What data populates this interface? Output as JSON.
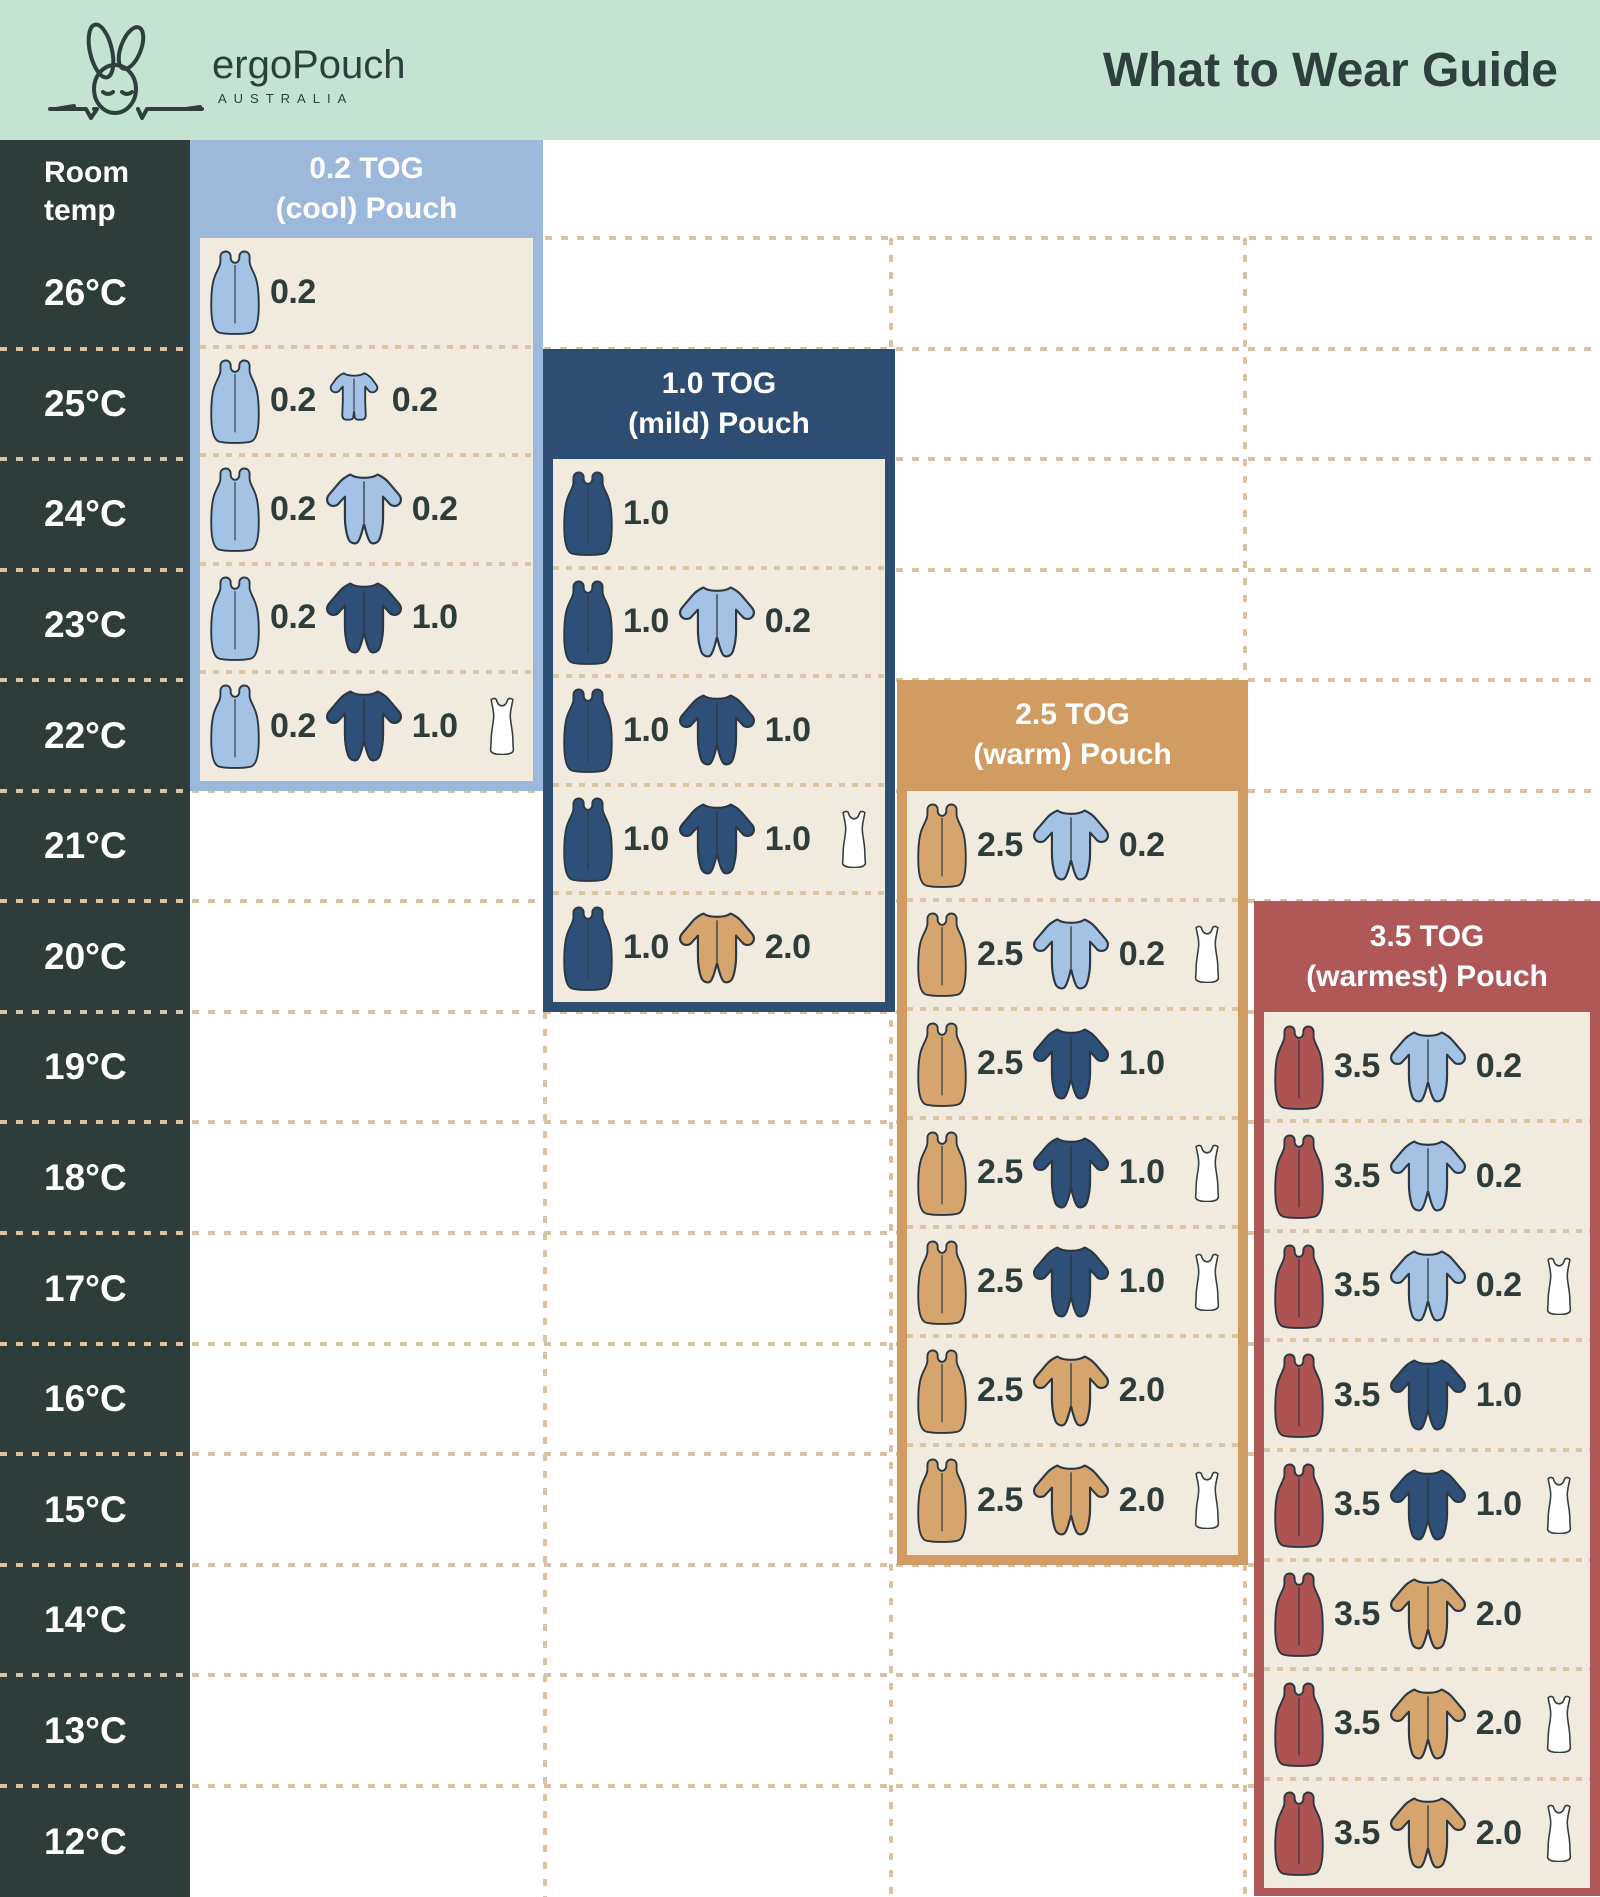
{
  "header": {
    "brand": "ergoPouch",
    "country": "AUSTRALIA",
    "title": "What to Wear Guide"
  },
  "temp_column": {
    "label_line1": "Room",
    "label_line2": "temp",
    "temps": [
      "26°C",
      "25°C",
      "24°C",
      "23°C",
      "22°C",
      "21°C",
      "20°C",
      "19°C",
      "18°C",
      "17°C",
      "16°C",
      "15°C",
      "14°C",
      "13°C",
      "12°C"
    ]
  },
  "palette": {
    "mint": "#c5e3d2",
    "dark_column": "#2e3c3a",
    "cream": "#f1eade",
    "dotted_line": "#d9c3a4",
    "text_dark": "#2e3d3b",
    "cool": "#9cb9dc",
    "mild": "#2e4d73",
    "warm": "#d19c62",
    "warmest": "#b05858",
    "lightblue": "#a4c2e3",
    "navy": "#2e5078",
    "tan": "#d6a56d",
    "maroon": "#ad5351",
    "white": "#ffffff"
  },
  "panels": [
    {
      "key": "cool",
      "title_line1": "0.2 TOG",
      "title_line2": "(cool) Pouch",
      "color_key": "cool",
      "rows": [
        {
          "temp": "26°C",
          "items": [
            {
              "type": "pouch",
              "color": "lightblue",
              "tog": "0.2"
            }
          ]
        },
        {
          "temp": "25°C",
          "items": [
            {
              "type": "pouch",
              "color": "lightblue",
              "tog": "0.2"
            },
            {
              "type": "romper",
              "color": "lightblue",
              "tog": "0.2"
            }
          ]
        },
        {
          "temp": "24°C",
          "items": [
            {
              "type": "pouch",
              "color": "lightblue",
              "tog": "0.2"
            },
            {
              "type": "sleepsuit",
              "color": "lightblue",
              "tog": "0.2"
            }
          ]
        },
        {
          "temp": "23°C",
          "items": [
            {
              "type": "pouch",
              "color": "lightblue",
              "tog": "0.2"
            },
            {
              "type": "sleepsuit",
              "color": "navy",
              "tog": "1.0"
            }
          ]
        },
        {
          "temp": "22°C",
          "items": [
            {
              "type": "pouch",
              "color": "lightblue",
              "tog": "0.2"
            },
            {
              "type": "sleepsuit",
              "color": "navy",
              "tog": "1.0"
            },
            {
              "type": "singlet",
              "color": "white",
              "tog": ""
            }
          ]
        }
      ]
    },
    {
      "key": "mild",
      "title_line1": "1.0 TOG",
      "title_line2": "(mild) Pouch",
      "color_key": "mild",
      "rows": [
        {
          "temp": "24°C",
          "items": [
            {
              "type": "pouch",
              "color": "navy",
              "tog": "1.0"
            }
          ]
        },
        {
          "temp": "23°C",
          "items": [
            {
              "type": "pouch",
              "color": "navy",
              "tog": "1.0"
            },
            {
              "type": "sleepsuit",
              "color": "lightblue",
              "tog": "0.2"
            }
          ]
        },
        {
          "temp": "22°C",
          "items": [
            {
              "type": "pouch",
              "color": "navy",
              "tog": "1.0"
            },
            {
              "type": "sleepsuit",
              "color": "navy",
              "tog": "1.0"
            }
          ]
        },
        {
          "temp": "21°C",
          "items": [
            {
              "type": "pouch",
              "color": "navy",
              "tog": "1.0"
            },
            {
              "type": "sleepsuit",
              "color": "navy",
              "tog": "1.0"
            },
            {
              "type": "singlet",
              "color": "white",
              "tog": ""
            }
          ]
        },
        {
          "temp": "20°C",
          "items": [
            {
              "type": "pouch",
              "color": "navy",
              "tog": "1.0"
            },
            {
              "type": "sleepsuit",
              "color": "tan",
              "tog": "2.0"
            }
          ]
        }
      ]
    },
    {
      "key": "warm",
      "title_line1": "2.5 TOG",
      "title_line2": "(warm) Pouch",
      "color_key": "warm",
      "rows": [
        {
          "temp": "21°C",
          "items": [
            {
              "type": "pouch",
              "color": "tan",
              "tog": "2.5"
            },
            {
              "type": "sleepsuit",
              "color": "lightblue",
              "tog": "0.2"
            }
          ]
        },
        {
          "temp": "20°C",
          "items": [
            {
              "type": "pouch",
              "color": "tan",
              "tog": "2.5"
            },
            {
              "type": "sleepsuit",
              "color": "lightblue",
              "tog": "0.2"
            },
            {
              "type": "singlet",
              "color": "white",
              "tog": ""
            }
          ]
        },
        {
          "temp": "19°C",
          "items": [
            {
              "type": "pouch",
              "color": "tan",
              "tog": "2.5"
            },
            {
              "type": "sleepsuit",
              "color": "navy",
              "tog": "1.0"
            }
          ]
        },
        {
          "temp": "18°C",
          "items": [
            {
              "type": "pouch",
              "color": "tan",
              "tog": "2.5"
            },
            {
              "type": "sleepsuit",
              "color": "navy",
              "tog": "1.0"
            },
            {
              "type": "singlet",
              "color": "white",
              "tog": ""
            }
          ]
        },
        {
          "temp": "17°C",
          "items": [
            {
              "type": "pouch",
              "color": "tan",
              "tog": "2.5"
            },
            {
              "type": "sleepsuit",
              "color": "navy",
              "tog": "1.0"
            },
            {
              "type": "singlet",
              "color": "white",
              "tog": ""
            }
          ]
        },
        {
          "temp": "16°C",
          "items": [
            {
              "type": "pouch",
              "color": "tan",
              "tog": "2.5"
            },
            {
              "type": "sleepsuit",
              "color": "tan",
              "tog": "2.0"
            }
          ]
        },
        {
          "temp": "15°C",
          "items": [
            {
              "type": "pouch",
              "color": "tan",
              "tog": "2.5"
            },
            {
              "type": "sleepsuit",
              "color": "tan",
              "tog": "2.0"
            },
            {
              "type": "singlet",
              "color": "white",
              "tog": ""
            }
          ]
        }
      ]
    },
    {
      "key": "warmest",
      "title_line1": "3.5 TOG",
      "title_line2": "(warmest) Pouch",
      "color_key": "warmest",
      "rows": [
        {
          "temp": "19°C",
          "items": [
            {
              "type": "pouch",
              "color": "maroon",
              "tog": "3.5"
            },
            {
              "type": "sleepsuit",
              "color": "lightblue",
              "tog": "0.2"
            }
          ]
        },
        {
          "temp": "18°C",
          "items": [
            {
              "type": "pouch",
              "color": "maroon",
              "tog": "3.5"
            },
            {
              "type": "sleepsuit",
              "color": "lightblue",
              "tog": "0.2"
            }
          ]
        },
        {
          "temp": "17°C",
          "items": [
            {
              "type": "pouch",
              "color": "maroon",
              "tog": "3.5"
            },
            {
              "type": "sleepsuit",
              "color": "lightblue",
              "tog": "0.2"
            },
            {
              "type": "singlet",
              "color": "white",
              "tog": ""
            }
          ]
        },
        {
          "temp": "16°C",
          "items": [
            {
              "type": "pouch",
              "color": "maroon",
              "tog": "3.5"
            },
            {
              "type": "sleepsuit",
              "color": "navy",
              "tog": "1.0"
            }
          ]
        },
        {
          "temp": "15°C",
          "items": [
            {
              "type": "pouch",
              "color": "maroon",
              "tog": "3.5"
            },
            {
              "type": "sleepsuit",
              "color": "navy",
              "tog": "1.0"
            },
            {
              "type": "singlet",
              "color": "white",
              "tog": ""
            }
          ]
        },
        {
          "temp": "14°C",
          "items": [
            {
              "type": "pouch",
              "color": "maroon",
              "tog": "3.5"
            },
            {
              "type": "sleepsuit",
              "color": "tan",
              "tog": "2.0"
            }
          ]
        },
        {
          "temp": "13°C",
          "items": [
            {
              "type": "pouch",
              "color": "maroon",
              "tog": "3.5"
            },
            {
              "type": "sleepsuit",
              "color": "tan",
              "tog": "2.0"
            },
            {
              "type": "singlet",
              "color": "white",
              "tog": ""
            }
          ]
        },
        {
          "temp": "12°C",
          "items": [
            {
              "type": "pouch",
              "color": "maroon",
              "tog": "3.5"
            },
            {
              "type": "sleepsuit",
              "color": "tan",
              "tog": "2.0"
            },
            {
              "type": "singlet",
              "color": "white",
              "tog": ""
            }
          ]
        }
      ]
    }
  ],
  "chart_data": {
    "type": "table",
    "title": "What to Wear Guide",
    "row_header": "Room temp",
    "columns": [
      "Room temp",
      "0.2 TOG (cool) Pouch",
      "1.0 TOG (mild) Pouch",
      "2.5 TOG (warm) Pouch",
      "3.5 TOG (warmest) Pouch"
    ],
    "rows": [
      [
        "26°C",
        "Pouch 0.2",
        "",
        "",
        ""
      ],
      [
        "25°C",
        "Pouch 0.2 + Romper 0.2",
        "",
        "",
        ""
      ],
      [
        "24°C",
        "Pouch 0.2 + Sleep suit 0.2",
        "Pouch 1.0",
        "",
        ""
      ],
      [
        "23°C",
        "Pouch 0.2 + Sleep suit 1.0",
        "Pouch 1.0 + Sleep suit 0.2",
        "",
        ""
      ],
      [
        "22°C",
        "Pouch 0.2 + Sleep suit 1.0 + Singlet",
        "Pouch 1.0 + Sleep suit 1.0",
        "",
        ""
      ],
      [
        "21°C",
        "",
        "Pouch 1.0 + Sleep suit 1.0 + Singlet",
        "Pouch 2.5 + Sleep suit 0.2",
        ""
      ],
      [
        "20°C",
        "",
        "Pouch 1.0 + Sleep suit 2.0",
        "Pouch 2.5 + Sleep suit 0.2 + Singlet",
        ""
      ],
      [
        "19°C",
        "",
        "",
        "Pouch 2.5 + Sleep suit 1.0",
        "Pouch 3.5 + Sleep suit 0.2"
      ],
      [
        "18°C",
        "",
        "",
        "Pouch 2.5 + Sleep suit 1.0 + Singlet",
        "Pouch 3.5 + Sleep suit 0.2"
      ],
      [
        "17°C",
        "",
        "",
        "Pouch 2.5 + Sleep suit 1.0 + Singlet",
        "Pouch 3.5 + Sleep suit 0.2 + Singlet"
      ],
      [
        "16°C",
        "",
        "",
        "Pouch 2.5 + Sleep suit 2.0",
        "Pouch 3.5 + Sleep suit 1.0"
      ],
      [
        "15°C",
        "",
        "",
        "Pouch 2.5 + Sleep suit 2.0 + Singlet",
        "Pouch 3.5 + Sleep suit 1.0 + Singlet"
      ],
      [
        "14°C",
        "",
        "",
        "",
        "Pouch 3.5 + Sleep suit 2.0"
      ],
      [
        "13°C",
        "",
        "",
        "",
        "Pouch 3.5 + Sleep suit 2.0 + Singlet"
      ],
      [
        "12°C",
        "",
        "",
        "",
        "Pouch 3.5 + Sleep suit 2.0 + Singlet"
      ]
    ]
  }
}
